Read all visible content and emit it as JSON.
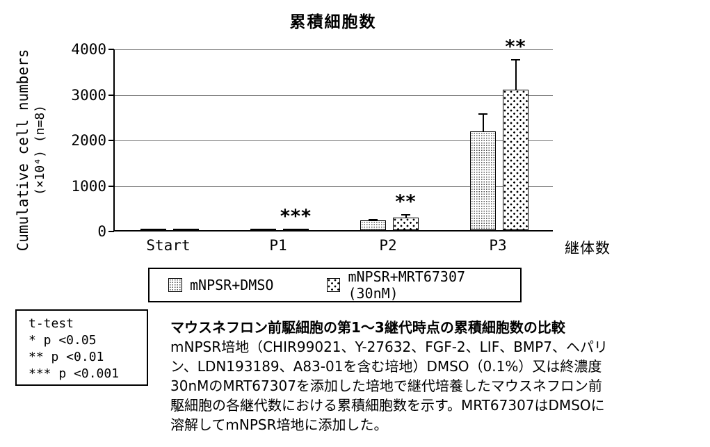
{
  "title": "累積細胞数",
  "y_axis": {
    "label_line1": "Cumulative cell numbers",
    "label_line2": "(×10⁴) (n=8)",
    "ticks": [
      "4000",
      "3000",
      "2000",
      "1000",
      "0"
    ]
  },
  "x_axis": {
    "categories": [
      "Start",
      "P1",
      "P2",
      "P3"
    ],
    "label": "継体数"
  },
  "legend": {
    "items": [
      {
        "label": "mNPSR+DMSO",
        "pattern": "fine-dots"
      },
      {
        "label": "mNPSR+MRT67307 (30nM)",
        "pattern": "sparse-square-dots"
      }
    ]
  },
  "stats_box": {
    "lines": [
      "t-test",
      "* p <0.05",
      "** p <0.01",
      "*** p <0.001"
    ]
  },
  "caption": {
    "title": "マウスネフロン前駆細胞の第1～3継代時点の累積細胞数の比較",
    "lines": [
      "mNPSR培地（CHIR99021、Y-27632、FGF-2、LIF、BMP7、ヘパリ",
      "ン、LDN193189、A83-01を含む培地）DMSO（0.1%）又は終濃度",
      "30nMのMRT67307を添加した培地で継代培養したマウスネフロン前",
      "駆細胞の各継代数における累積細胞数を示す。MRT67307はDMSOに",
      "溶解してmNPSR培地に添加した。"
    ]
  },
  "chart_data": {
    "type": "bar",
    "title": "累積細胞数",
    "xlabel": "継体数",
    "ylabel": "Cumulative cell numbers (×10⁴) (n=8)",
    "categories": [
      "Start",
      "P1",
      "P2",
      "P3"
    ],
    "series": [
      {
        "name": "mNPSR+DMSO",
        "pattern": "fine-dots",
        "values": [
          5,
          15,
          220,
          2170
        ],
        "errors": [
          0,
          0,
          25,
          400
        ]
      },
      {
        "name": "mNPSR+MRT67307 (30nM)",
        "pattern": "sparse-square-dots",
        "values": [
          5,
          25,
          280,
          3080
        ],
        "errors": [
          0,
          0,
          65,
          680
        ]
      }
    ],
    "significance": [
      {
        "category_index": 1,
        "series_index": 1,
        "label": "***"
      },
      {
        "category_index": 2,
        "series_index": 1,
        "label": "**"
      },
      {
        "category_index": 3,
        "series_index": 1,
        "label": "**"
      }
    ],
    "ylim": [
      0,
      4000
    ],
    "ytick_interval": 1000,
    "grid": true,
    "legend_position": "bottom"
  },
  "colors": {
    "background": "#ffffff",
    "text": "#000000",
    "axis": "#000000",
    "grid": "#777777",
    "bar_border": "#000000",
    "bar_fill": "#ffffff"
  }
}
